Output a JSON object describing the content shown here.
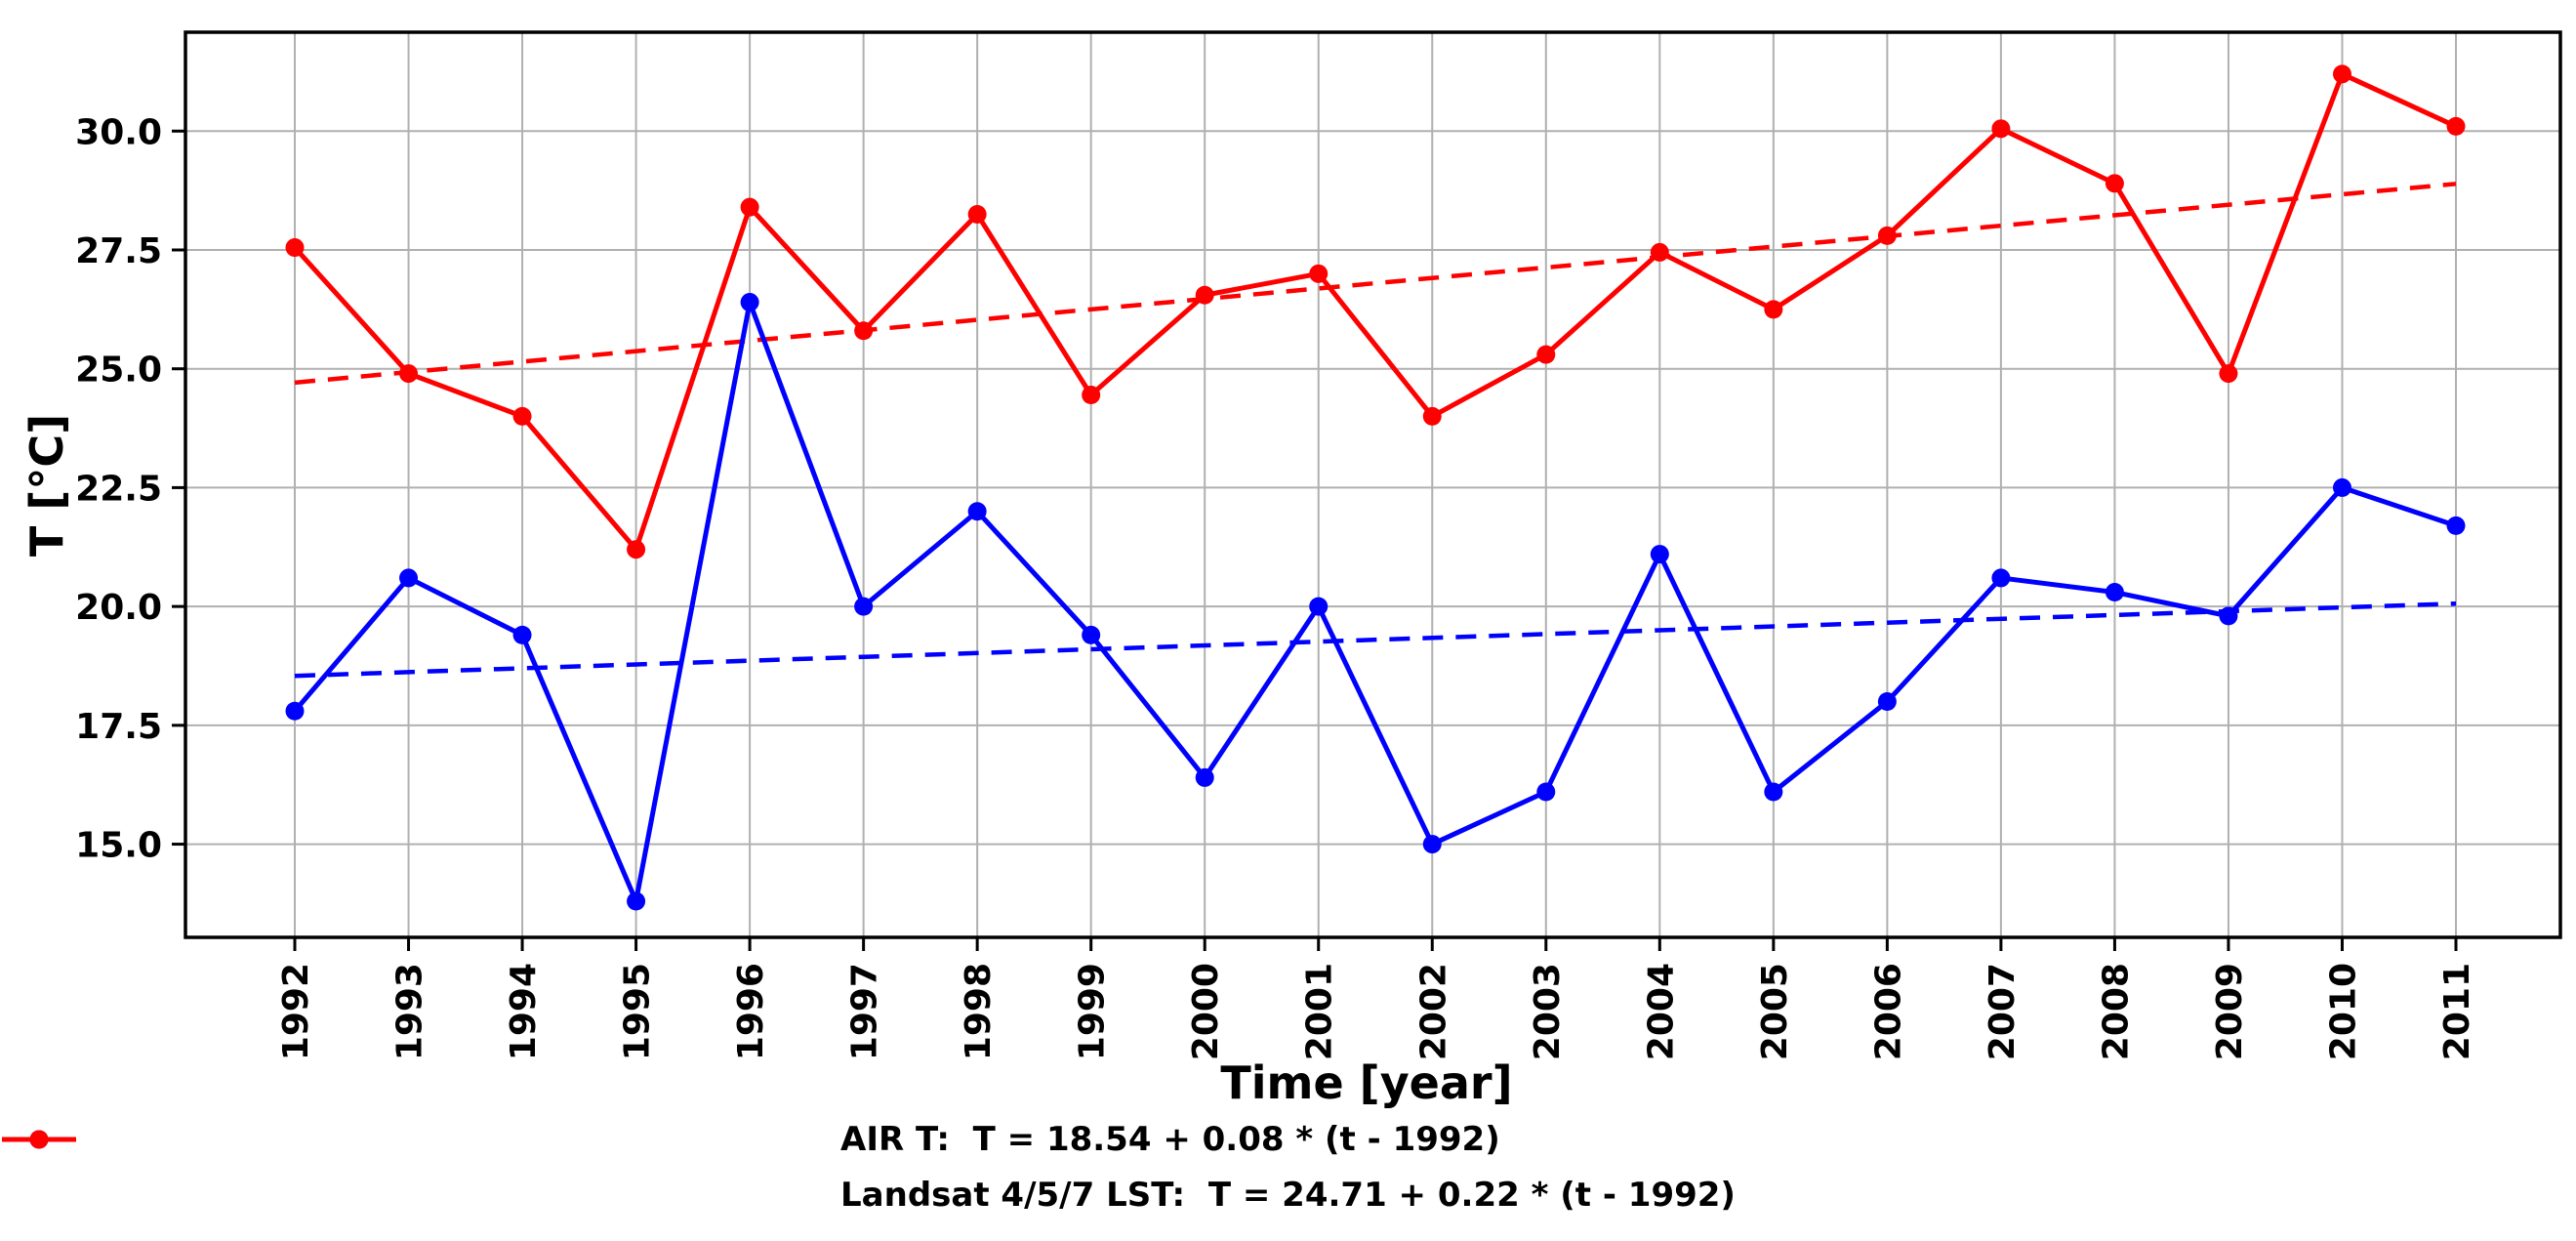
{
  "chart_data": {
    "type": "line",
    "title": "",
    "xlabel": "Time [year]",
    "ylabel": "T [°C]",
    "x": [
      1992,
      1993,
      1994,
      1995,
      1996,
      1997,
      1998,
      1999,
      2000,
      2001,
      2002,
      2003,
      2004,
      2005,
      2006,
      2007,
      2008,
      2009,
      2010,
      2011
    ],
    "series": [
      {
        "name": "AIR T",
        "color": "#0000ff",
        "values": [
          17.8,
          20.6,
          19.4,
          13.8,
          26.4,
          20.0,
          22.0,
          19.4,
          16.4,
          20.0,
          15.0,
          16.1,
          21.1,
          16.1,
          18.0,
          20.6,
          20.3,
          19.8,
          22.5,
          21.7
        ],
        "trend": {
          "intercept": 18.54,
          "slope": 0.08,
          "ref_year": 1992
        },
        "legend_label": "AIR T:  T = 18.54 + 0.08 * (t - 1992)"
      },
      {
        "name": "Landsat 4/5/7 LST",
        "color": "#ff0000",
        "values": [
          27.55,
          24.9,
          24.0,
          21.2,
          28.4,
          25.8,
          28.25,
          24.45,
          26.55,
          27.0,
          24.0,
          25.3,
          27.45,
          26.25,
          27.8,
          30.05,
          28.9,
          24.9,
          31.2,
          30.1
        ],
        "trend": {
          "intercept": 24.71,
          "slope": 0.22,
          "ref_year": 1992
        },
        "legend_label": "Landsat 4/5/7 LST:  T = 24.71 + 0.22 * (t - 1992)"
      }
    ],
    "yticks": [
      15.0,
      17.5,
      20.0,
      22.5,
      25.0,
      27.5,
      30.0
    ],
    "ylim": [
      13.04,
      32.08
    ],
    "grid": true,
    "legend_position": "below-center",
    "marker": "circle",
    "trend_style": "dashed",
    "colors": {
      "grid": "#b0b0b0",
      "spine": "#000000",
      "text": "#000000",
      "background": "#ffffff"
    }
  }
}
